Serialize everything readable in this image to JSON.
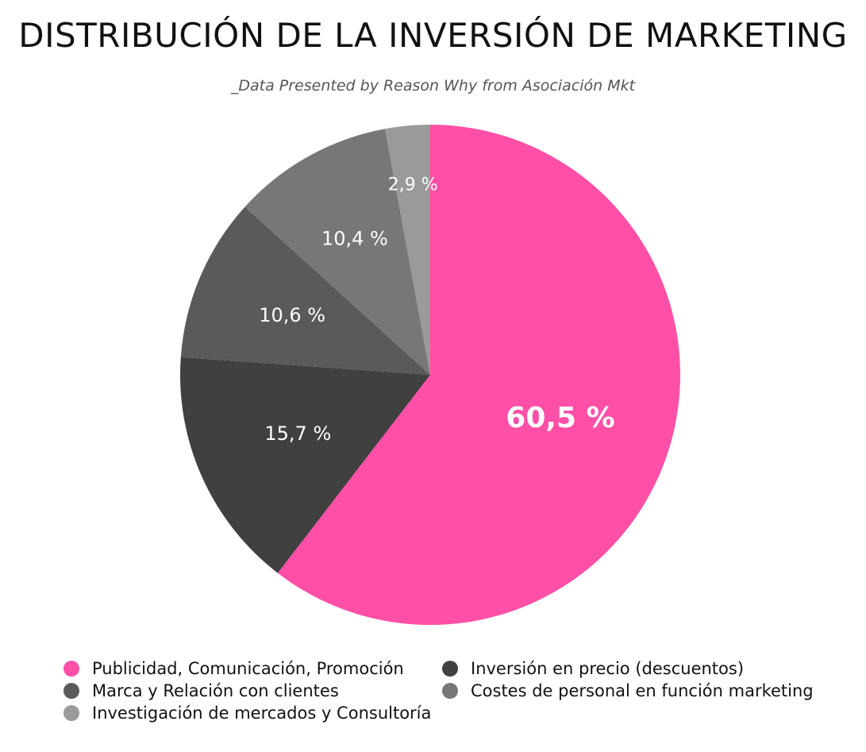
{
  "title": "DISTRIBUCIÓN DE LA INVERSIÓN DE MARKETING",
  "subtitle": "_Data Presented by Reason Why from Asociación Mkt",
  "chart_data": {
    "type": "pie",
    "categories": [
      "Publicidad, Comunicación, Promoción",
      "Inversión en precio (descuentos)",
      "Marca y Relación con clientes",
      "Costes de personal en función marketing",
      "Investigación de mercados y Consultoría"
    ],
    "values": [
      60.5,
      15.7,
      10.6,
      10.4,
      2.9
    ],
    "labels": [
      "60,5 %",
      "15,7 %",
      "10,6 %",
      "10,4 %",
      "2,9 %"
    ],
    "colors": [
      "#ff4fa7",
      "#404040",
      "#5a5a5a",
      "#777777",
      "#9a9a9a"
    ],
    "start": "top",
    "direction": "clockwise",
    "legend_position": "bottom"
  }
}
